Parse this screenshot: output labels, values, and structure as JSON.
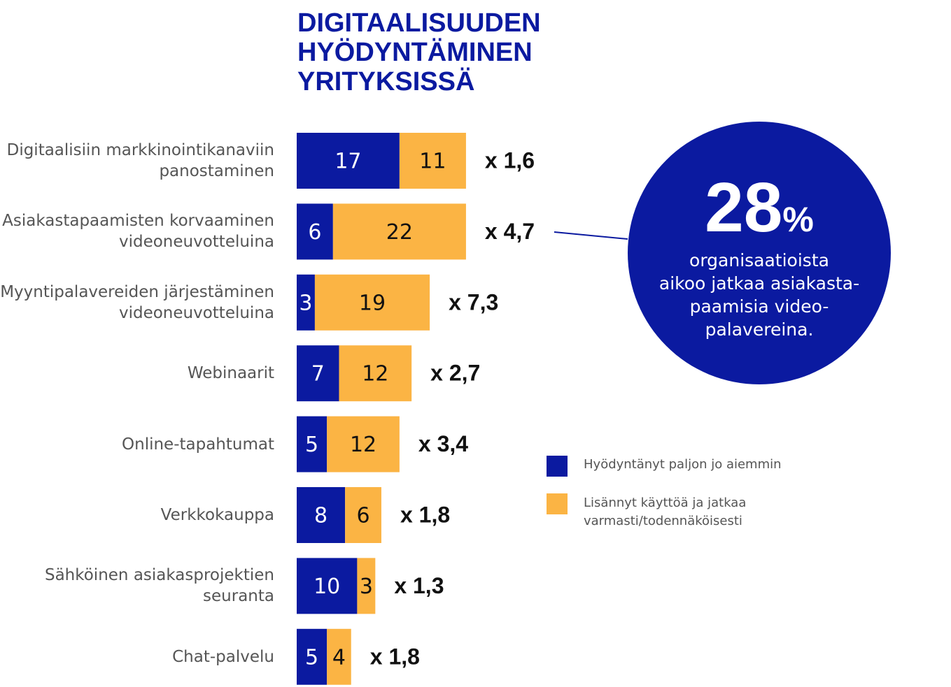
{
  "chart_data": {
    "type": "stacked-bar-horizontal",
    "title": "DIGITAALISUUDEN\nHYÖDYNTÄMINEN\nYRITYKSISSÄ",
    "categories": [
      "Digitaalisiin markkinointikanaviin\npanostaminen",
      "Asiakastapaamisten korvaaminen\nvideoneuvotteluina",
      "Myyntipalavereiden järjestäminen\nvideoneuvotteluina",
      "Webinaarit",
      "Online-tapahtumat",
      "Verkkokauppa",
      "Sähköinen asiakasprojektien\nseuranta",
      "Chat-palvelu"
    ],
    "series": [
      {
        "name": "Hyödyntänyt paljon jo aiemmin",
        "color": "#0b1aa0",
        "values": [
          17,
          6,
          3,
          7,
          5,
          8,
          10,
          5
        ]
      },
      {
        "name": "Lisännyt käyttöä ja jatkaa\nvarmasti/todennäköisesti",
        "color": "#fbb444",
        "values": [
          11,
          22,
          19,
          12,
          12,
          6,
          3,
          4
        ]
      }
    ],
    "multipliers": [
      "x 1,6",
      "x 4,7",
      "x 7,3",
      "x 2,7",
      "x 3,4",
      "x 1,8",
      "x 1,3",
      "x 1,8"
    ],
    "callout": {
      "value": 28,
      "unit": "%",
      "text": "organisaatioista\naikoo jatkaa asiakasta-\npaamisia video-\npalavereina."
    }
  }
}
